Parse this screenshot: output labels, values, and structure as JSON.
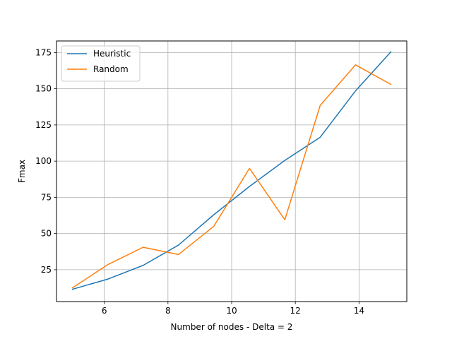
{
  "chart_data": {
    "type": "line",
    "title": "",
    "xlabel": "Number of nodes - Delta = 2",
    "ylabel": "Fmax",
    "xlim": [
      4.5,
      15.5
    ],
    "ylim": [
      3,
      183
    ],
    "xticks": [
      6,
      8,
      10,
      12,
      14
    ],
    "xtick_labels": [
      "6",
      "8",
      "10",
      "12",
      "14"
    ],
    "yticks": [
      25,
      50,
      75,
      100,
      125,
      150,
      175
    ],
    "ytick_labels": [
      "25",
      "50",
      "75",
      "100",
      "125",
      "150",
      "175"
    ],
    "grid": true,
    "legend_position": "top-left",
    "x": [
      5,
      6.11,
      7.22,
      8.33,
      9.44,
      10.56,
      11.67,
      12.78,
      13.89,
      15
    ],
    "series": [
      {
        "name": "Heuristic",
        "color": "#1f77b4",
        "values": [
          11.5,
          18.5,
          28,
          42,
          63,
          82.5,
          100.5,
          116.5,
          148.5,
          175.5
        ]
      },
      {
        "name": "Random",
        "color": "#ff7f0e",
        "values": [
          12.5,
          28.5,
          40.5,
          35.5,
          55,
          95,
          59.5,
          138.5,
          166.5,
          153
        ]
      }
    ]
  }
}
